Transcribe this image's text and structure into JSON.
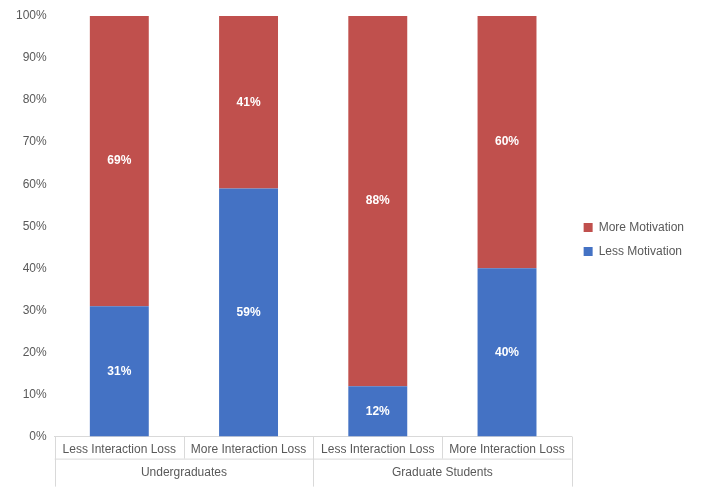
{
  "chart_data": {
    "type": "bar",
    "stacked": true,
    "categories": [
      "Less Interaction Loss",
      "More Interaction Loss",
      "Less Interaction Loss",
      "More Interaction Loss"
    ],
    "category_groups": [
      "Undergraduates",
      "Graduate Students"
    ],
    "series": [
      {
        "name": "Less Motivation",
        "color": "#4472c4",
        "values": [
          31,
          59,
          12,
          40
        ],
        "value_labels": [
          "31%",
          "59%",
          "12%",
          "40%"
        ]
      },
      {
        "name": "More Motivation",
        "color": "#c0504d",
        "values": [
          69,
          41,
          88,
          60
        ],
        "value_labels": [
          "69%",
          "41%",
          "88%",
          "60%"
        ]
      }
    ],
    "ylim": [
      0,
      100
    ],
    "yticks": [
      {
        "value": 0,
        "label": "0%"
      },
      {
        "value": 10,
        "label": "10%"
      },
      {
        "value": 20,
        "label": "20%"
      },
      {
        "value": 30,
        "label": "30%"
      },
      {
        "value": 40,
        "label": "40%"
      },
      {
        "value": 50,
        "label": "50%"
      },
      {
        "value": 60,
        "label": "60%"
      },
      {
        "value": 70,
        "label": "70%"
      },
      {
        "value": 80,
        "label": "80%"
      },
      {
        "value": 90,
        "label": "90%"
      },
      {
        "value": 100,
        "label": "100%"
      }
    ],
    "grid": false,
    "legend": "right",
    "data_labels": true
  }
}
